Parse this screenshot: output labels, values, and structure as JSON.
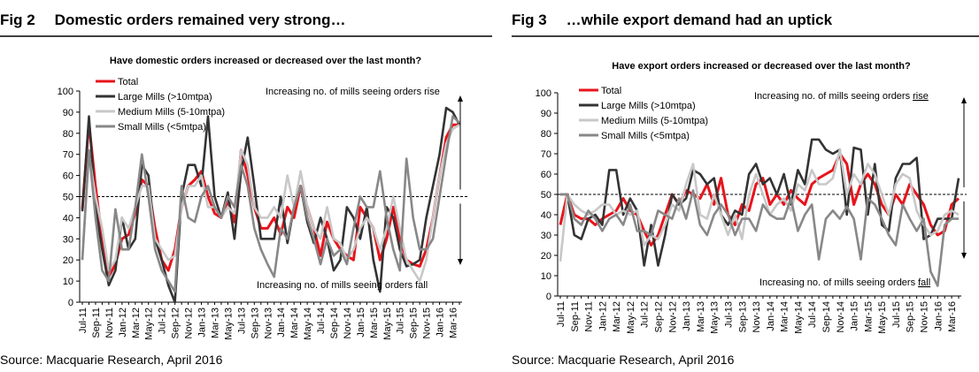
{
  "chart_data": [
    {
      "type": "line",
      "fig_label": "Fig 2",
      "heading": "Domestic orders remained very strong…",
      "title": "Have domestic orders increased or decreased over the last month?",
      "categories": [
        "Jul-11",
        null,
        "Sep-11",
        null,
        "Nov-11",
        null,
        "Jan-12",
        null,
        "Mar-12",
        null,
        "May-12",
        null,
        "Jul-12",
        null,
        "Sep-12",
        null,
        "Nov-12",
        null,
        "Jan-13",
        null,
        "Mar-13",
        null,
        "May-13",
        null,
        "Jul-13",
        null,
        "Sep-13",
        null,
        "Nov-13",
        null,
        "Jan-14",
        null,
        "Mar-14",
        null,
        "May-14",
        null,
        "Jul-14",
        null,
        "Sep-14",
        null,
        "Nov-14",
        null,
        "Jan-15",
        null,
        "Mar-15",
        null,
        "May-15",
        null,
        "Jul-15",
        null,
        "Sep-15",
        null,
        "Nov-15",
        null,
        "Jan-16",
        null,
        "Mar-16",
        null
      ],
      "series": [
        {
          "name": "Total",
          "color": "#e8141b",
          "values": [
            44,
            85,
            55,
            30,
            12,
            18,
            30,
            32,
            42,
            58,
            55,
            35,
            20,
            15,
            25,
            45,
            55,
            58,
            62,
            50,
            42,
            40,
            48,
            38,
            72,
            60,
            45,
            35,
            35,
            40,
            32,
            45,
            40,
            55,
            45,
            35,
            22,
            38,
            30,
            25,
            22,
            20,
            45,
            40,
            35,
            20,
            30,
            45,
            30,
            20,
            18,
            17,
            25,
            40,
            60,
            78,
            84,
            84
          ]
        },
        {
          "name": "Large Mills (>10mtpa)",
          "color": "#333333",
          "values": [
            43,
            88,
            45,
            25,
            8,
            15,
            40,
            25,
            30,
            65,
            60,
            30,
            20,
            8,
            0,
            50,
            65,
            65,
            55,
            88,
            50,
            40,
            52,
            30,
            62,
            78,
            55,
            30,
            30,
            30,
            50,
            28,
            45,
            55,
            38,
            28,
            40,
            30,
            15,
            20,
            45,
            40,
            30,
            45,
            20,
            5,
            45,
            40,
            25,
            17,
            18,
            20,
            40,
            55,
            70,
            92,
            90,
            84
          ]
        },
        {
          "name": "Medium Mills (5-10mtpa)",
          "color": "#c8c8c8",
          "values": [
            20,
            70,
            50,
            35,
            15,
            20,
            40,
            35,
            45,
            55,
            55,
            30,
            25,
            20,
            22,
            45,
            55,
            55,
            60,
            45,
            45,
            40,
            45,
            42,
            72,
            65,
            45,
            40,
            40,
            45,
            40,
            60,
            45,
            62,
            45,
            35,
            30,
            45,
            30,
            28,
            20,
            25,
            35,
            40,
            35,
            25,
            35,
            50,
            35,
            20,
            15,
            10,
            20,
            40,
            60,
            75,
            82,
            84
          ]
        },
        {
          "name": "Small Mills (<5mtpa)",
          "color": "#888888",
          "values": [
            20,
            72,
            40,
            15,
            10,
            44,
            25,
            25,
            45,
            70,
            50,
            25,
            15,
            10,
            5,
            55,
            40,
            38,
            50,
            55,
            45,
            40,
            50,
            45,
            65,
            55,
            35,
            25,
            18,
            12,
            35,
            30,
            45,
            55,
            40,
            30,
            18,
            30,
            22,
            25,
            18,
            35,
            50,
            45,
            45,
            62,
            40,
            25,
            15,
            68,
            40,
            25,
            25,
            30,
            50,
            70,
            88,
            85
          ]
        }
      ],
      "ylim": [
        0,
        100
      ],
      "yticks": [
        0,
        10,
        20,
        30,
        40,
        50,
        60,
        70,
        80,
        90,
        100
      ],
      "reference_line": 50,
      "annotation_rise": {
        "text": "Increasing no. of mills seeing orders",
        "emphasis": "rise"
      },
      "annotation_fall": {
        "text": "Increasing no. of mills seeing orders",
        "emphasis": "fall"
      },
      "source": "Source: Macquarie Research, April 2016"
    },
    {
      "type": "line",
      "fig_label": "Fig 3",
      "heading": "…while export demand had an uptick",
      "title": "Have export orders increased or decreased  over the last month?",
      "categories": [
        "Jul-11",
        null,
        "Sep-11",
        null,
        "Nov-11",
        null,
        "Jan-12",
        null,
        "Mar-12",
        null,
        "May-12",
        null,
        "Jul-12",
        null,
        "Sep-12",
        null,
        "Nov-12",
        null,
        "Jan-13",
        null,
        "Mar-13",
        null,
        "May-13",
        null,
        "Jul-13",
        null,
        "Sep-13",
        null,
        "Nov-13",
        null,
        "Jan-14",
        null,
        "Mar-14",
        null,
        "May-14",
        null,
        "Jul-14",
        null,
        "Sep-14",
        null,
        "Nov-14",
        null,
        "Jan-15",
        null,
        "Mar-15",
        null,
        "May-15",
        null,
        "Jul-15",
        null,
        "Sep-15",
        null,
        "Nov-15",
        null,
        "Jan-16",
        null,
        "Mar-16",
        null
      ],
      "series": [
        {
          "name": "Total",
          "color": "#e8141b",
          "values": [
            35,
            50,
            40,
            38,
            38,
            35,
            38,
            40,
            42,
            48,
            42,
            40,
            32,
            25,
            30,
            40,
            50,
            45,
            52,
            50,
            48,
            55,
            45,
            58,
            40,
            35,
            45,
            42,
            55,
            58,
            45,
            50,
            45,
            52,
            48,
            45,
            55,
            58,
            60,
            62,
            70,
            65,
            45,
            55,
            60,
            55,
            45,
            40,
            50,
            45,
            55,
            50,
            45,
            35,
            30,
            32,
            45,
            48
          ]
        },
        {
          "name": "Large Mills (>10mtpa)",
          "color": "#333333",
          "values": [
            50,
            50,
            30,
            28,
            38,
            40,
            35,
            62,
            62,
            40,
            48,
            42,
            15,
            35,
            15,
            30,
            50,
            45,
            48,
            62,
            60,
            55,
            58,
            40,
            35,
            42,
            40,
            60,
            65,
            55,
            58,
            50,
            60,
            45,
            62,
            55,
            77,
            77,
            72,
            70,
            72,
            40,
            73,
            72,
            40,
            65,
            35,
            32,
            58,
            65,
            65,
            68,
            28,
            30,
            38,
            38,
            38,
            58
          ]
        },
        {
          "name": "Medium Mills (5-10mtpa)",
          "color": "#c8c8c8",
          "values": [
            17,
            50,
            45,
            42,
            40,
            42,
            45,
            45,
            40,
            42,
            40,
            42,
            25,
            30,
            28,
            35,
            45,
            42,
            55,
            65,
            40,
            38,
            50,
            40,
            30,
            40,
            28,
            50,
            60,
            50,
            40,
            45,
            48,
            42,
            55,
            52,
            62,
            55,
            55,
            58,
            72,
            50,
            60,
            55,
            65,
            60,
            50,
            40,
            55,
            60,
            58,
            42,
            35,
            30,
            32,
            40,
            42,
            40
          ]
        },
        {
          "name": "Small Mills (<5mtpa)",
          "color": "#888888",
          "values": [
            50,
            50,
            38,
            35,
            42,
            38,
            32,
            38,
            40,
            35,
            45,
            32,
            32,
            30,
            42,
            40,
            38,
            48,
            38,
            52,
            35,
            30,
            40,
            45,
            40,
            30,
            38,
            38,
            32,
            45,
            40,
            38,
            38,
            48,
            32,
            40,
            45,
            18,
            38,
            42,
            38,
            44,
            38,
            18,
            48,
            45,
            38,
            30,
            25,
            45,
            38,
            32,
            38,
            12,
            5,
            35,
            38,
            38
          ]
        }
      ],
      "ylim": [
        0,
        100
      ],
      "yticks": [
        0,
        10,
        20,
        30,
        40,
        50,
        60,
        70,
        80,
        90,
        100
      ],
      "reference_line": 50,
      "annotation_rise": {
        "text": "Increasing no. of mills seeing orders",
        "emphasis": "rise"
      },
      "annotation_fall": {
        "text": "Increasing no. of mills seeing orders",
        "emphasis": "fall"
      },
      "source": "Source: Macquarie Research, April 2016"
    }
  ]
}
